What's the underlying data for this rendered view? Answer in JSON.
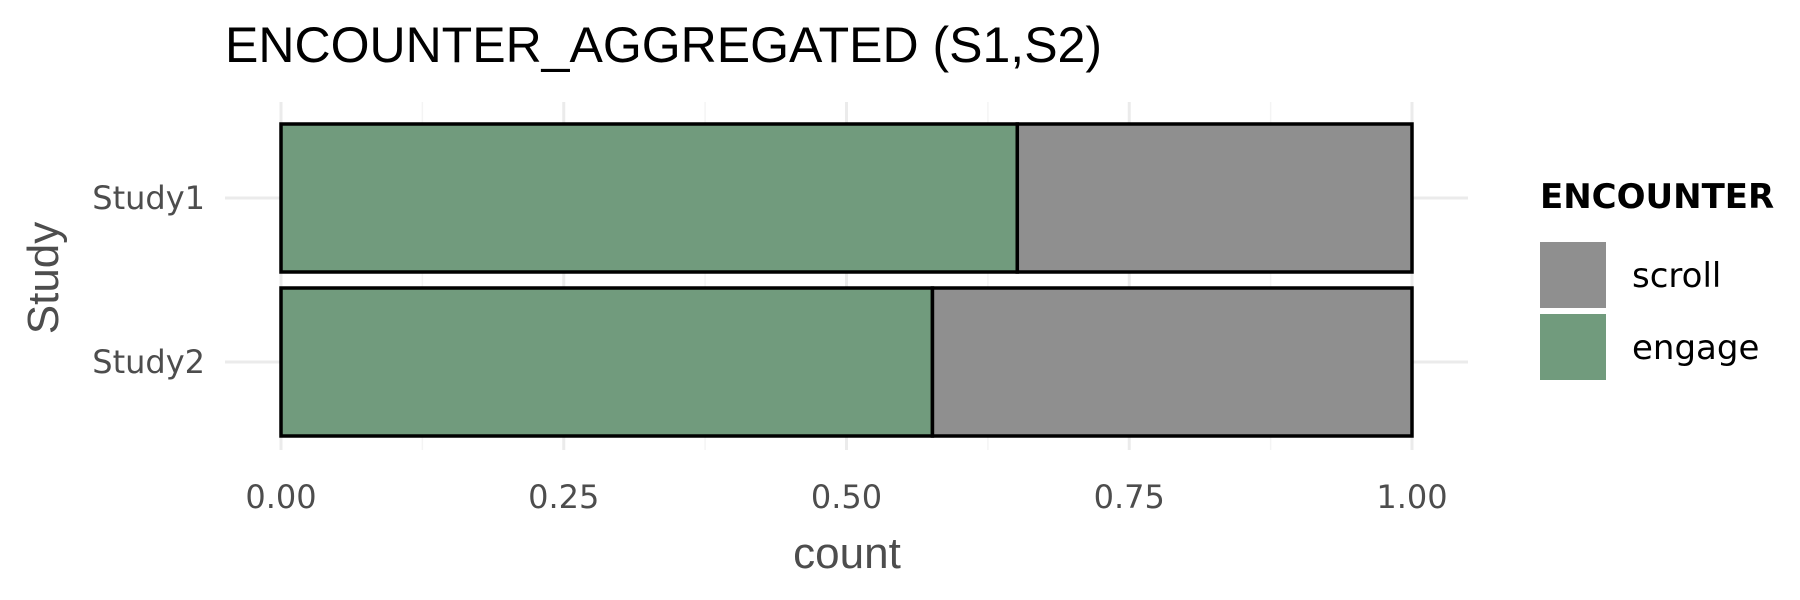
{
  "chart_data": {
    "type": "bar",
    "orientation": "horizontal",
    "stacked": true,
    "title": "ENCOUNTER_AGGREGATED (S1,S2)",
    "xlabel": "count",
    "ylabel": "Study",
    "categories": [
      "Study1",
      "Study2"
    ],
    "series": [
      {
        "name": "engage",
        "values": [
          0.651,
          0.576
        ],
        "color": "#719b7d"
      },
      {
        "name": "scroll",
        "values": [
          0.349,
          0.424
        ],
        "color": "#8f8f8f"
      }
    ],
    "xlim": [
      0,
      1
    ],
    "xticks": [
      "0.00",
      "0.25",
      "0.50",
      "0.75",
      "1.00"
    ],
    "xtick_values": [
      0,
      0.25,
      0.5,
      0.75,
      1.0
    ],
    "grid": true,
    "bar_outline_color": "#000000",
    "legend": {
      "title": "ENCOUNTER",
      "position": "right",
      "items": [
        {
          "label": "scroll",
          "color": "#8f8f8f"
        },
        {
          "label": "engage",
          "color": "#719b7d"
        }
      ]
    }
  }
}
